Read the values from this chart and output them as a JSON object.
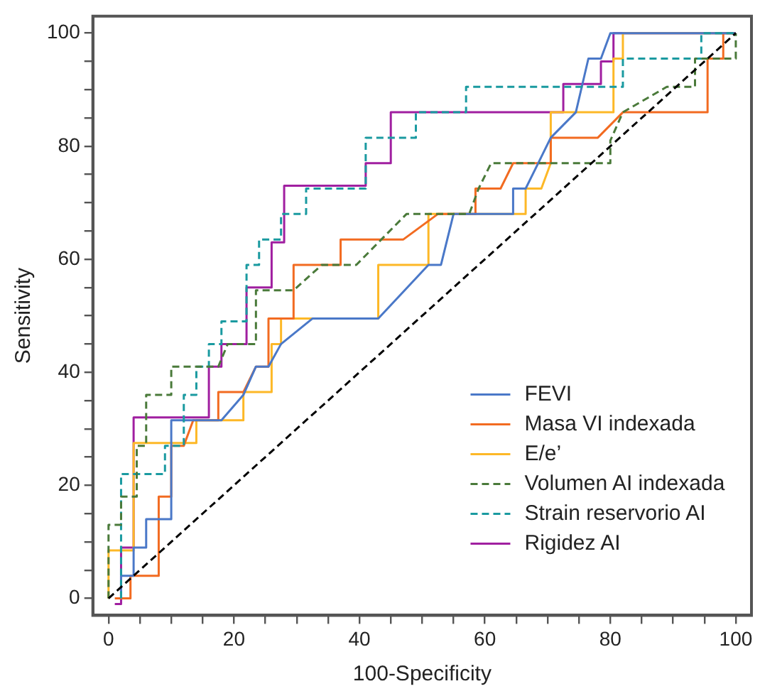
{
  "chart_data": {
    "type": "line",
    "xlabel": "100-Specificity",
    "ylabel": "Sensitivity",
    "xlim": [
      -2.5,
      102.5
    ],
    "ylim": [
      -3,
      103
    ],
    "xticks": [
      0,
      {
        "value": 5,
        "label": null
      },
      {
        "value": 10,
        "label": null
      },
      {
        "value": 15,
        "label": null
      },
      20,
      {
        "value": 25,
        "label": null
      },
      {
        "value": 30,
        "label": null
      },
      {
        "value": 35,
        "label": null
      },
      40,
      {
        "value": 45,
        "label": null
      },
      {
        "value": 50,
        "label": null
      },
      {
        "value": 55,
        "label": null
      },
      60,
      {
        "value": 65,
        "label": null
      },
      {
        "value": 70,
        "label": null
      },
      {
        "value": 75,
        "label": null
      },
      80,
      {
        "value": 85,
        "label": null
      },
      {
        "value": 90,
        "label": null
      },
      {
        "value": 95,
        "label": null
      },
      100
    ],
    "yticks": [
      0,
      {
        "value": 5,
        "label": null
      },
      {
        "value": 10,
        "label": null
      },
      {
        "value": 15,
        "label": null
      },
      20,
      {
        "value": 25,
        "label": null
      },
      {
        "value": 30,
        "label": null
      },
      {
        "value": 35,
        "label": null
      },
      40,
      {
        "value": 45,
        "label": null
      },
      {
        "value": 50,
        "label": null
      },
      {
        "value": 55,
        "label": null
      },
      60,
      {
        "value": 65,
        "label": null
      },
      {
        "value": 70,
        "label": null
      },
      {
        "value": 75,
        "label": null
      },
      80,
      {
        "value": 85,
        "label": null
      },
      {
        "value": 90,
        "label": null
      },
      {
        "value": 95,
        "label": null
      },
      100
    ],
    "grid": false,
    "legend": "bottom right",
    "marker": "none",
    "series": [
      {
        "color": "#000000",
        "line_style": "dashed",
        "x": [
          0,
          100
        ],
        "values": [
          0,
          100
        ]
      },
      {
        "name": "FEVI",
        "color": "#4a78c8",
        "line_style": "solid",
        "x": [
          2,
          2,
          4,
          4,
          6,
          6,
          10,
          10,
          18,
          21.5,
          23.5,
          25.5,
          27.5,
          32.5,
          43,
          51,
          53,
          55,
          64.5,
          64.5,
          66.5,
          70.5,
          74.5,
          76.5,
          78.5,
          80,
          100
        ],
        "values": [
          0,
          4,
          4,
          9,
          9,
          14,
          14,
          31.5,
          31.5,
          36,
          41,
          41,
          45,
          49.5,
          49.5,
          59,
          59,
          68,
          68,
          72.5,
          72.5,
          81.5,
          86,
          95.5,
          95.5,
          100,
          100
        ]
      },
      {
        "name": "Masa VI indexada",
        "color": "#f26b21",
        "line_style": "solid",
        "x": [
          1,
          3.5,
          3.5,
          8,
          8,
          10,
          10,
          12,
          13.5,
          17.5,
          17.5,
          21.5,
          23.5,
          25.5,
          25.5,
          29.5,
          29.5,
          37,
          37,
          47,
          52.5,
          58.5,
          58.5,
          62.5,
          64.5,
          70.5,
          70.5,
          78,
          82,
          95.5,
          95.5,
          98,
          98,
          100
        ],
        "values": [
          0,
          0,
          4,
          4,
          18,
          18,
          27,
          27,
          31.5,
          31.5,
          36.5,
          36.5,
          41,
          41,
          49.5,
          49.5,
          59,
          59,
          63.5,
          63.5,
          68,
          68,
          72.5,
          72.5,
          77,
          77,
          81.5,
          81.5,
          86,
          86,
          95.5,
          95.5,
          100,
          100
        ]
      },
      {
        "name": "E/e’",
        "color": "#fdb827",
        "line_style": "solid",
        "x": [
          0,
          0,
          4,
          4,
          14,
          14,
          21.5,
          21.5,
          26,
          26,
          27.5,
          27.5,
          43,
          43,
          51,
          51,
          66.5,
          66.5,
          69,
          70.5,
          70.5,
          80.5,
          80.5,
          82,
          82,
          100
        ],
        "values": [
          0,
          8.5,
          8.5,
          27.5,
          27.5,
          31.5,
          31.5,
          36.5,
          36.5,
          45,
          45,
          49.5,
          49.5,
          59,
          59,
          68,
          68,
          72.5,
          72.5,
          77,
          86,
          86,
          95.5,
          95.5,
          100,
          100
        ]
      },
      {
        "name": "Volumen AI indexada",
        "color": "#4a7a3a",
        "line_style": "dashed",
        "x": [
          0,
          0,
          2,
          2,
          4.5,
          4.5,
          6,
          6,
          10,
          10,
          17.5,
          19,
          23.5,
          23.5,
          29.5,
          34,
          39.5,
          47.5,
          57.5,
          59,
          61,
          80,
          80,
          82,
          89,
          93.5,
          93.5,
          100,
          100
        ],
        "values": [
          0,
          13,
          13,
          18,
          18,
          27,
          27,
          36,
          36,
          41,
          41,
          45,
          45,
          54.5,
          54.5,
          59,
          59,
          68,
          68,
          72.5,
          77,
          77,
          81,
          86,
          90.5,
          90.5,
          95.5,
          95.5,
          100
        ]
      },
      {
        "name": "Strain reservorio AI",
        "color": "#1a9aa0",
        "line_style": "dashed",
        "x": [
          2,
          2,
          9,
          9,
          12,
          12,
          14,
          14,
          16,
          16,
          18,
          18,
          22,
          22,
          24,
          24,
          27.5,
          27.5,
          31.5,
          31.5,
          41,
          41,
          49,
          49,
          57,
          57,
          82,
          82,
          94.5,
          94.5,
          100
        ],
        "values": [
          0,
          22,
          22,
          27,
          27,
          36,
          36,
          41,
          41,
          45,
          45,
          49,
          49,
          59,
          59,
          63.5,
          63.5,
          68,
          68,
          72.5,
          72.5,
          81.5,
          81.5,
          86,
          86,
          90.5,
          90.5,
          95.5,
          95.5,
          100,
          100
        ]
      },
      {
        "name": "Rigidez AI",
        "color": "#a01fa0",
        "line_style": "solid",
        "x": [
          1,
          2,
          2,
          4,
          4,
          16,
          16,
          18,
          18,
          22,
          22,
          26,
          26,
          28,
          28,
          41,
          41,
          45,
          45,
          72.5,
          72.5,
          78.5,
          78.5,
          80.5,
          80.5,
          100
        ],
        "values": [
          -1,
          -1,
          9,
          9,
          32,
          32,
          41,
          41,
          45,
          45,
          55,
          55,
          63,
          63,
          73,
          73,
          77,
          77,
          86,
          86,
          91,
          91,
          95,
          95,
          100,
          100
        ]
      }
    ]
  }
}
